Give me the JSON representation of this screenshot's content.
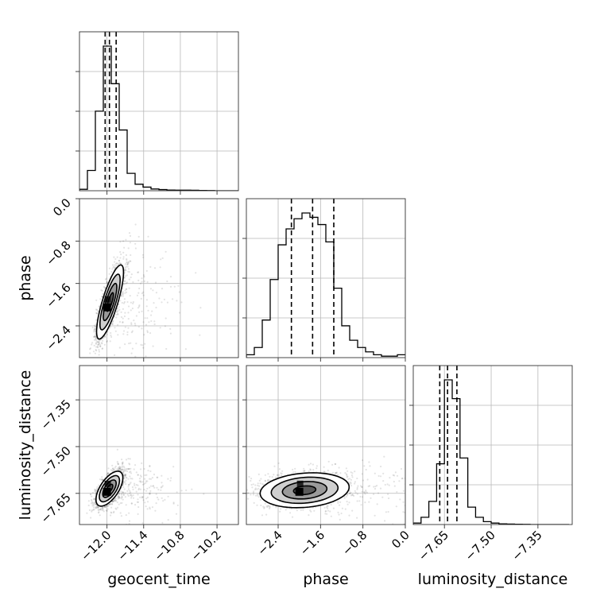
{
  "chart_data": {
    "type": "corner",
    "parameters": [
      "geocent_time",
      "phase",
      "luminosity_distance"
    ],
    "labels": {
      "geocent_time": "geocent_time",
      "phase": "phase",
      "luminosity_distance": "luminosity_distance"
    },
    "ranges": {
      "geocent_time": [
        -12.45,
        -9.85
      ],
      "phase": [
        -3.0,
        0.0
      ],
      "luminosity_distance": [
        -7.75,
        -7.24
      ]
    },
    "ticks": {
      "geocent_time": [
        -12.0,
        -11.4,
        -10.8,
        -10.2
      ],
      "phase": [
        -2.4,
        -1.6,
        -0.8,
        0.0
      ],
      "luminosity_distance": [
        -7.65,
        -7.5,
        -7.35
      ]
    },
    "tick_labels": {
      "geocent_time": [
        "−12.0",
        "−11.4",
        "−10.8",
        "−10.2"
      ],
      "phase": [
        "−2.4",
        "−1.6",
        "−0.8",
        "0.0"
      ],
      "luminosity_distance": [
        "−7.65",
        "−7.50",
        "−7.35"
      ]
    },
    "quantiles": {
      "geocent_time": [
        -12.03,
        -11.96,
        -11.85
      ],
      "phase": [
        -2.15,
        -1.75,
        -1.35
      ],
      "luminosity_distance": [
        -7.665,
        -7.64,
        -7.61
      ]
    },
    "histograms": {
      "geocent_time": {
        "edges": [
          -12.45,
          -12.32,
          -12.19,
          -12.06,
          -11.93,
          -11.8,
          -11.67,
          -11.54,
          -11.41,
          -11.28,
          -11.15,
          -11.02,
          -10.89,
          -10.76,
          -10.63,
          -10.5,
          -10.37,
          -10.24,
          -10.11,
          -9.98,
          -9.85
        ],
        "counts": [
          0.01,
          0.14,
          0.55,
          1.0,
          0.74,
          0.42,
          0.12,
          0.045,
          0.025,
          0.012,
          0.008,
          0.005,
          0.004,
          0.004,
          0.003,
          0.002,
          0.001,
          0,
          0,
          0
        ]
      },
      "phase": {
        "edges": [
          -3.0,
          -2.85,
          -2.7,
          -2.55,
          -2.4,
          -2.25,
          -2.1,
          -1.95,
          -1.8,
          -1.65,
          -1.5,
          -1.35,
          -1.2,
          -1.05,
          -0.9,
          -0.75,
          -0.6,
          -0.45,
          -0.3,
          -0.15,
          0.0
        ],
        "counts": [
          0.02,
          0.07,
          0.26,
          0.54,
          0.78,
          0.89,
          0.96,
          1.0,
          0.97,
          0.92,
          0.8,
          0.48,
          0.22,
          0.12,
          0.07,
          0.04,
          0.02,
          0.01,
          0.01,
          0.02
        ]
      },
      "luminosity_distance": {
        "edges": [
          -7.75,
          -7.725,
          -7.7,
          -7.675,
          -7.65,
          -7.625,
          -7.6,
          -7.575,
          -7.55,
          -7.525,
          -7.5,
          -7.475,
          -7.45,
          -7.425,
          -7.4,
          -7.375,
          -7.35,
          -7.325,
          -7.3,
          -7.275,
          -7.25
        ],
        "counts": [
          0.01,
          0.05,
          0.16,
          0.42,
          1.0,
          0.87,
          0.46,
          0.12,
          0.05,
          0.02,
          0.01,
          0.005,
          0.003,
          0.002,
          0.001,
          0,
          0,
          0,
          0,
          0
        ]
      }
    },
    "pairs": [
      {
        "x": "geocent_time",
        "y": "phase",
        "center": [
          -11.95,
          -1.95
        ],
        "sd": [
          0.11,
          0.35
        ],
        "rho": 0.8,
        "density_peak": [
          -12.0,
          -2.05
        ]
      },
      {
        "x": "geocent_time",
        "y": "luminosity_distance",
        "center": [
          -11.96,
          -7.635
        ],
        "sd": [
          0.11,
          0.028
        ],
        "rho": 0.62,
        "density_peak": [
          -12.0,
          -7.645
        ]
      },
      {
        "x": "phase",
        "y": "luminosity_distance",
        "center": [
          -1.9,
          -7.64
        ],
        "sd": [
          0.42,
          0.028
        ],
        "rho": 0.18,
        "density_peak": [
          -2.0,
          -7.645
        ]
      }
    ],
    "contour_levels_sigma": [
      0.5,
      1.0,
      1.5,
      2.0
    ],
    "grid": true,
    "legend": "none"
  }
}
